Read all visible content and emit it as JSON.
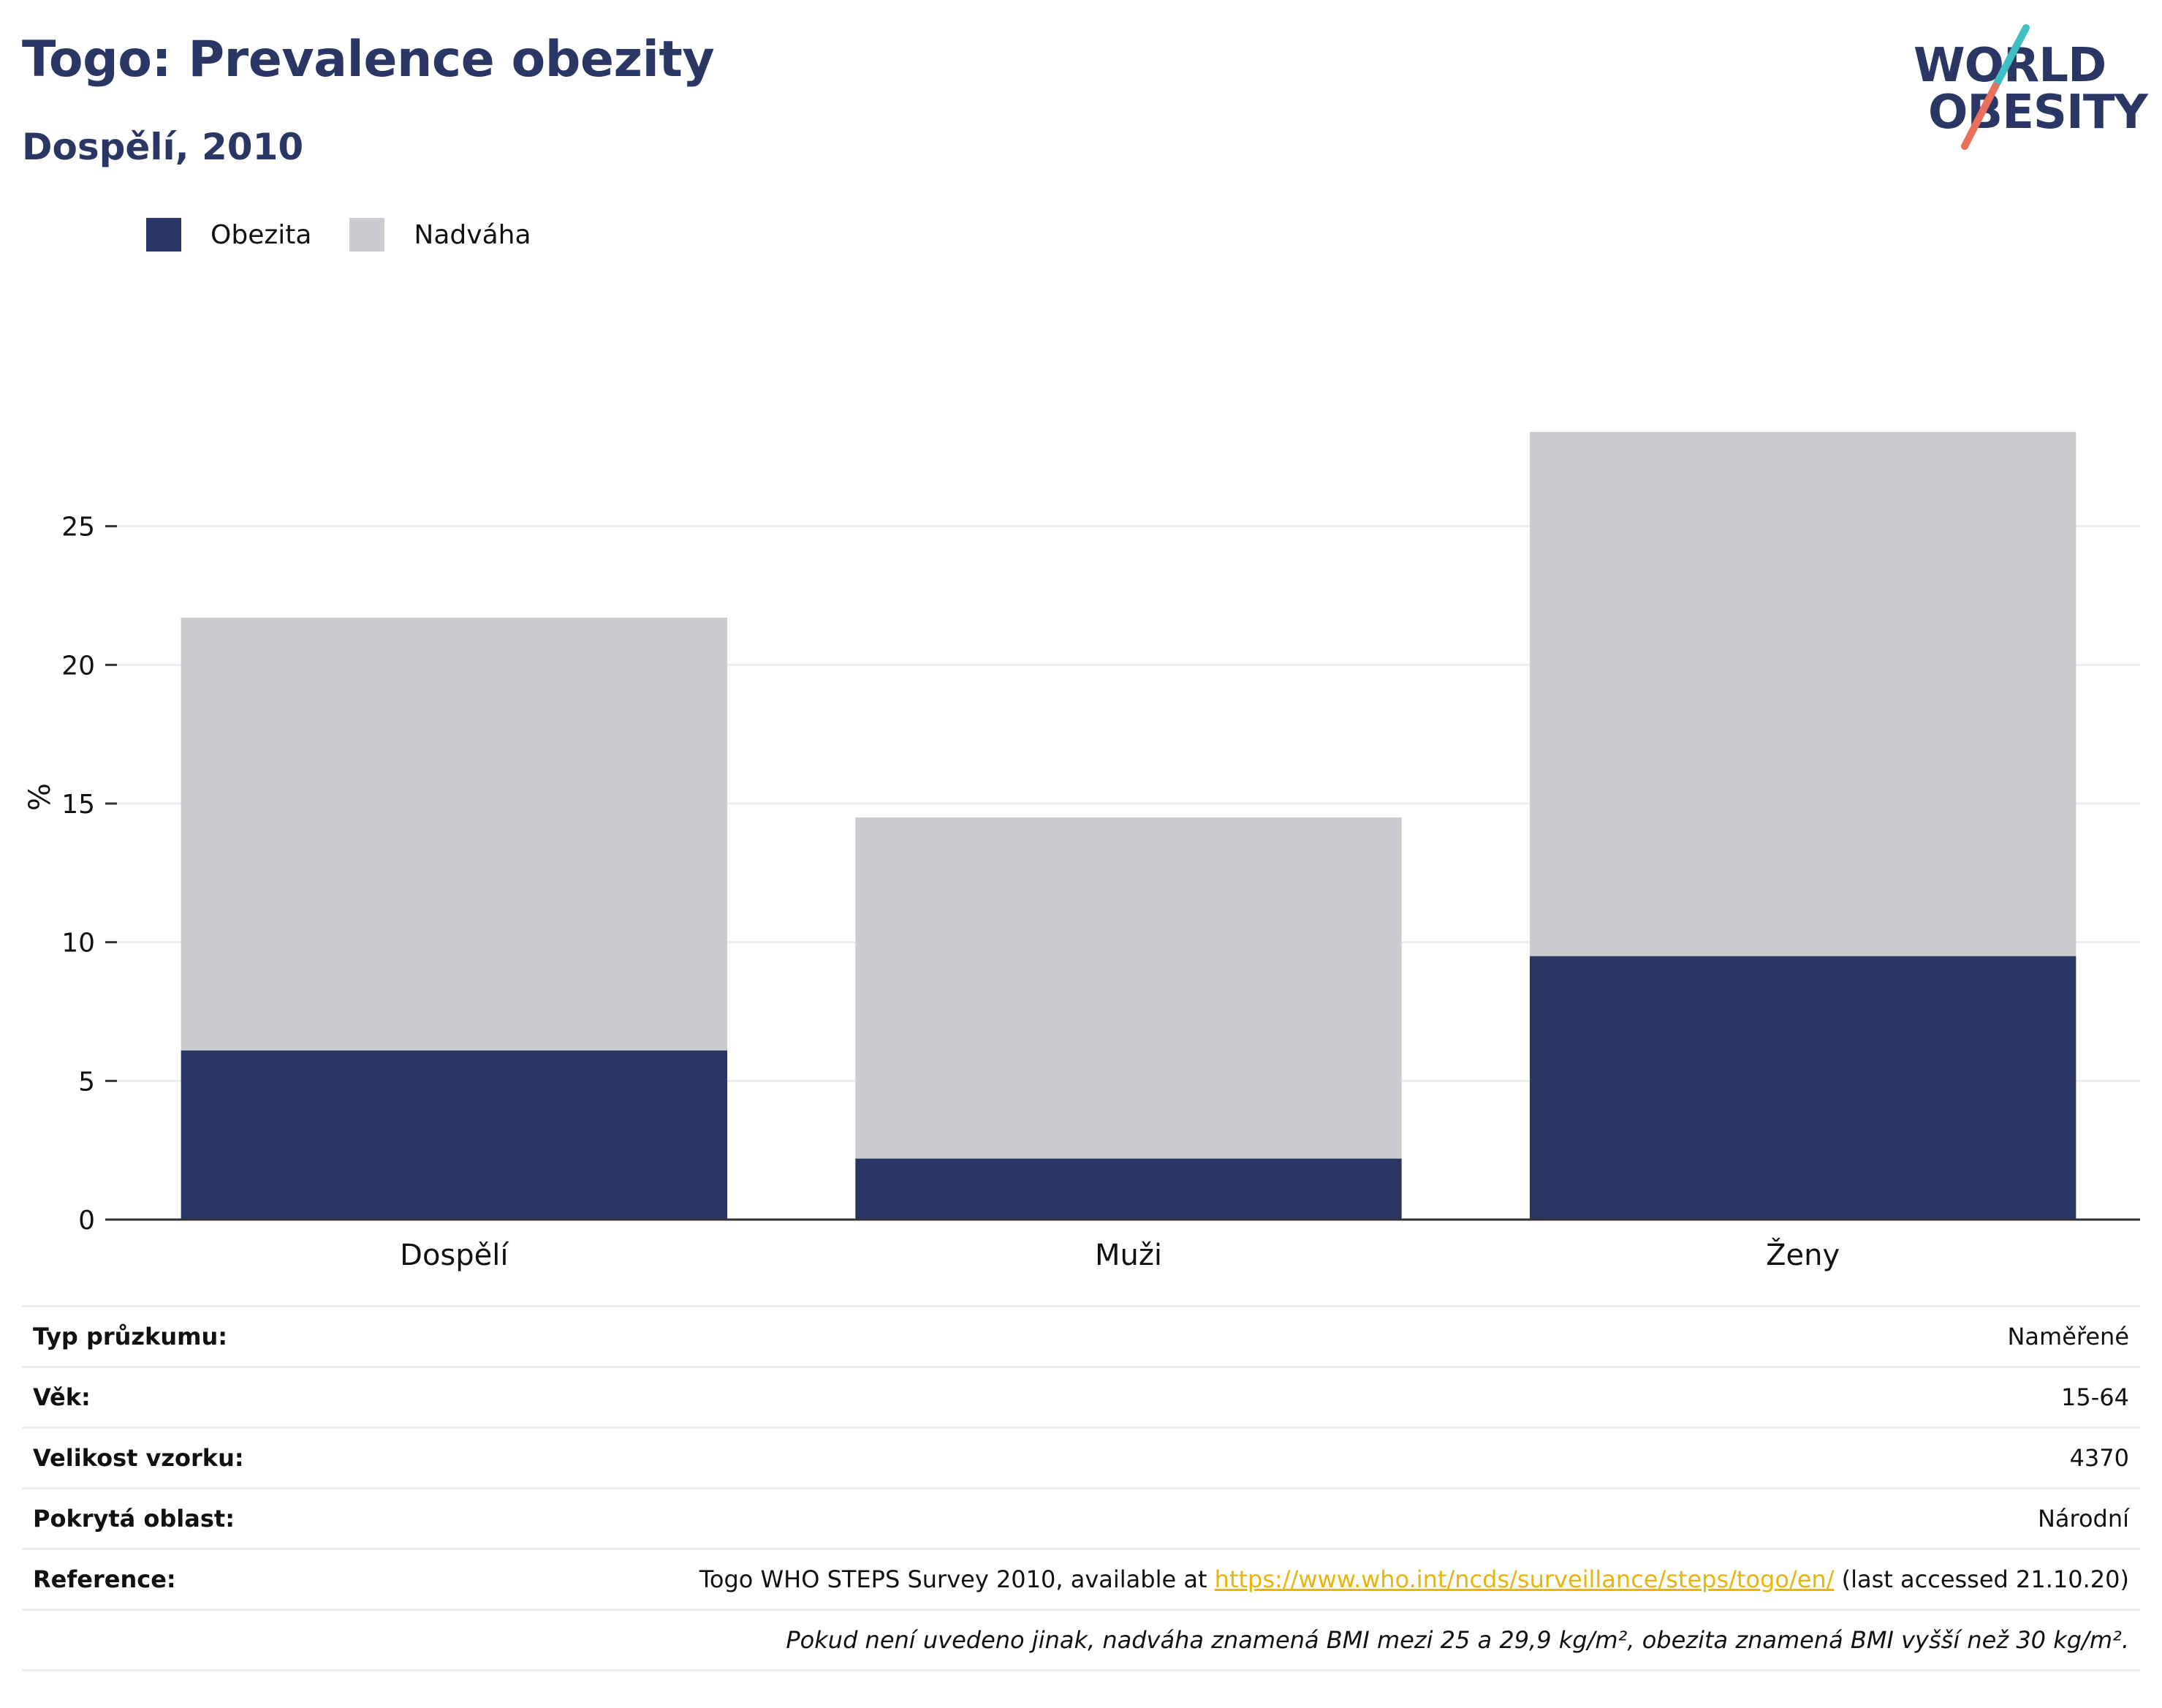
{
  "header": {
    "title": "Togo: Prevalence obezity",
    "subtitle": "Dospělí, 2010"
  },
  "logo": {
    "line1": "WORLD",
    "line2": "OBESITY",
    "colors": {
      "text": "#2a3663",
      "slash_top": "#3fbfc4",
      "slash_bottom": "#e9705c"
    }
  },
  "legend": [
    {
      "label": "Obezita",
      "color": "#2a3663"
    },
    {
      "label": "Nadváha",
      "color": "#cacccf"
    }
  ],
  "chart_data": {
    "type": "bar",
    "stacked": true,
    "categories": [
      "Dospělí",
      "Muži",
      "Ženy"
    ],
    "series": [
      {
        "name": "Obezita",
        "color": "#2a3663",
        "values": [
          6.1,
          2.2,
          9.5
        ]
      },
      {
        "name": "Nadváha",
        "color": "#cacccf",
        "values": [
          15.6,
          12.3,
          18.9
        ]
      }
    ],
    "ylabel": "%",
    "ylim": [
      0,
      30
    ],
    "yticks": [
      0,
      5,
      10,
      15,
      20,
      25
    ],
    "grid": true,
    "legend_position": "top-left"
  },
  "info": {
    "rows": [
      {
        "label": "Typ průzkumu:",
        "value": "Naměřené"
      },
      {
        "label": "Věk:",
        "value": "15-64"
      },
      {
        "label": "Velikost vzorku:",
        "value": "4370"
      },
      {
        "label": "Pokrytá oblast:",
        "value": "Národní"
      }
    ],
    "reference": {
      "label": "Reference:",
      "prefix": "Togo WHO STEPS Survey 2010, available at ",
      "link": "https://www.who.int/ncds/surveillance/steps/togo/en/",
      "suffix": " (last accessed 21.10.20)"
    },
    "note": "Pokud není uvedeno jinak, nadváha znamená BMI mezi 25 a 29,9 kg/m², obezita znamená BMI vyšší než 30 kg/m²."
  }
}
